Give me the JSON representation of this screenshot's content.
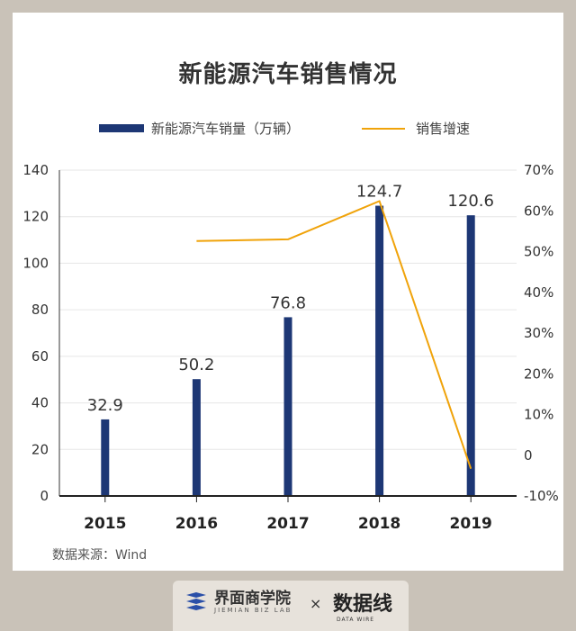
{
  "title": "新能源汽车销售情况",
  "legend": {
    "bar_label": "新能源汽车销量（万辆）",
    "line_label": "销售增速"
  },
  "source": "数据来源：Wind",
  "footer": {
    "brand1_name": "界面商学院",
    "brand1_sub": "JIEMIAN BIZ LAB",
    "separator": "×",
    "brand2_name": "数据线",
    "brand2_sub": "DATA WIRE"
  },
  "colors": {
    "bar": "#1d3775",
    "line": "#f0a30a",
    "background": "#c9c2b8"
  },
  "chart_data": {
    "type": "bar",
    "categories": [
      "2015",
      "2016",
      "2017",
      "2018",
      "2019"
    ],
    "series": [
      {
        "name": "新能源汽车销量（万辆）",
        "type": "bar",
        "axis": "left",
        "values": [
          32.9,
          50.2,
          76.8,
          124.7,
          120.6
        ]
      },
      {
        "name": "销售增速",
        "type": "line",
        "axis": "right",
        "values": [
          null,
          52.6,
          53.0,
          62.4,
          -3.3
        ]
      }
    ],
    "data_labels": [
      "32.9",
      "50.2",
      "76.8",
      "124.7",
      "120.6"
    ],
    "ylim_left": [
      0,
      140
    ],
    "yticks_left": [
      "0",
      "20",
      "40",
      "60",
      "80",
      "100",
      "120",
      "140"
    ],
    "ylim_right": [
      -10,
      70
    ],
    "yticks_right": [
      "-10%",
      "0",
      "10%",
      "20%",
      "30%",
      "40%",
      "50%",
      "60%",
      "70%"
    ],
    "grid": true,
    "legend_position": "top"
  }
}
